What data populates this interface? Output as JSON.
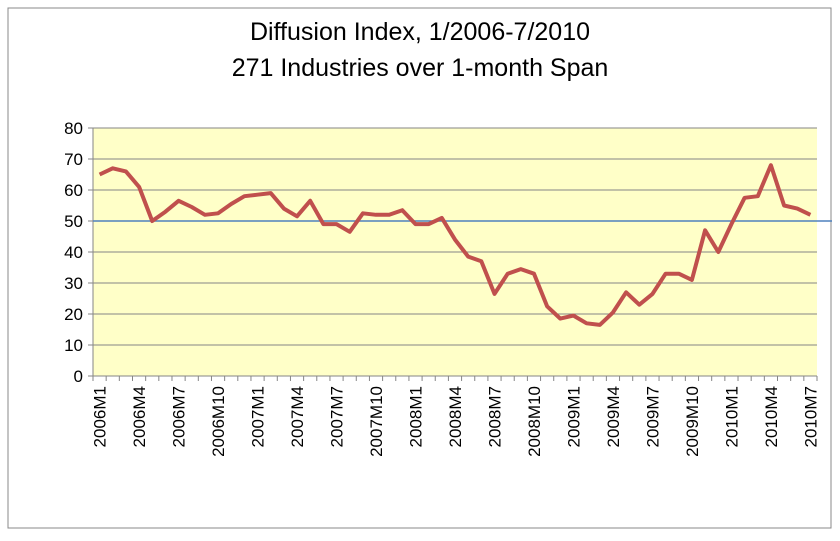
{
  "chart_data": {
    "type": "line",
    "title": "Diffusion Index, 1/2006-7/2010",
    "subtitle": "271 Industries over 1-month Span",
    "categories": [
      "2006M1",
      null,
      null,
      "2006M4",
      null,
      null,
      "2006M7",
      null,
      null,
      "2006M10",
      null,
      null,
      "2007M1",
      null,
      null,
      "2007M4",
      null,
      null,
      "2007M7",
      null,
      null,
      "2007M10",
      null,
      null,
      "2008M1",
      null,
      null,
      "2008M4",
      null,
      null,
      "2008M7",
      null,
      null,
      "2008M10",
      null,
      null,
      "2009M1",
      null,
      null,
      "2009M4",
      null,
      null,
      "2009M7",
      null,
      null,
      "2009M10",
      null,
      null,
      "2010M1",
      null,
      null,
      "2010M4",
      null,
      null,
      "2010M7"
    ],
    "series": [
      {
        "color": "#c0504d",
        "values": [
          65,
          67,
          66,
          61,
          50,
          53,
          56.5,
          54.5,
          52,
          52.5,
          55.5,
          58,
          58.5,
          59,
          54,
          51.5,
          56.5,
          49,
          49,
          46.5,
          52.5,
          52,
          52,
          53.5,
          49,
          49,
          51,
          44,
          38.5,
          37,
          26.5,
          33,
          34.5,
          33,
          22.5,
          18.5,
          19.5,
          17,
          16.5,
          20.5,
          27,
          23,
          26.5,
          33,
          33,
          31,
          47,
          40,
          49,
          57.5,
          58,
          68,
          55,
          54,
          52
        ]
      }
    ],
    "reference_line": {
      "value": 50,
      "color": "#4f81bd"
    },
    "ylim": [
      0,
      80
    ],
    "yticks": [
      0,
      10,
      20,
      30,
      40,
      50,
      60,
      70,
      80
    ],
    "grid": true,
    "plot_background": "#ffffc8"
  }
}
